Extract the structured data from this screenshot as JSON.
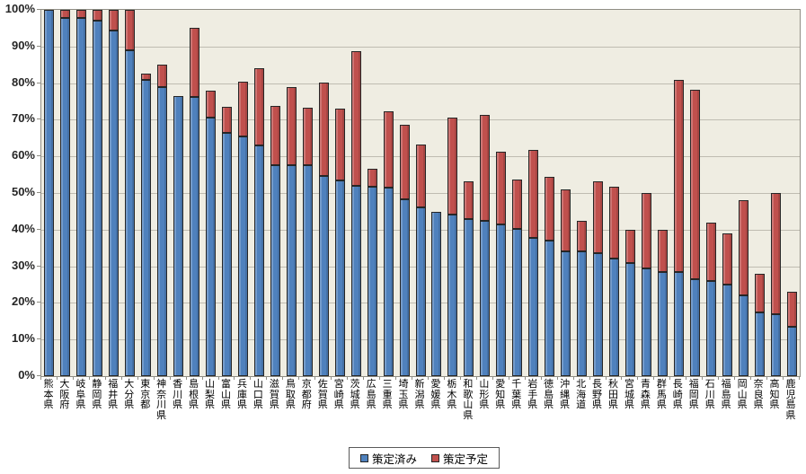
{
  "chart_data": {
    "type": "bar",
    "subtype": "stacked-vertical",
    "title": "",
    "xlabel": "",
    "ylabel": "",
    "categories": [
      "熊本県",
      "大阪府",
      "岐阜県",
      "静岡県",
      "福井県",
      "大分県",
      "東京都",
      "神奈川県",
      "香川県",
      "島根県",
      "山梨県",
      "富山県",
      "兵庫県",
      "山口県",
      "滋賀県",
      "鳥取県",
      "京都府",
      "佐賀県",
      "宮崎県",
      "茨城県",
      "広島県",
      "三重県",
      "埼玉県",
      "新潟県",
      "愛媛県",
      "栃木県",
      "和歌山県",
      "山形県",
      "愛知県",
      "千葉県",
      "岩手県",
      "徳島県",
      "沖縄県",
      "北海道",
      "長野県",
      "秋田県",
      "宮城県",
      "青森県",
      "群馬県",
      "長崎県",
      "福岡県",
      "石川県",
      "福島県",
      "岡山県",
      "奈良県",
      "高知県",
      "鹿児島県"
    ],
    "series": [
      {
        "name": "策定済み",
        "color": "#4f81bd",
        "values": [
          100,
          97.7,
          97.7,
          97.0,
          94.3,
          89.0,
          81.0,
          79.0,
          76.5,
          76.2,
          70.5,
          66.5,
          65.5,
          63.0,
          57.5,
          57.5,
          57.5,
          54.7,
          53.5,
          52.0,
          51.6,
          51.4,
          48.2,
          46.0,
          44.8,
          44.0,
          43.0,
          42.5,
          41.5,
          40.3,
          37.7,
          37.0,
          34.0,
          34.0,
          33.5,
          32.0,
          31.0,
          29.5,
          28.5,
          28.5,
          26.4,
          26.0,
          25.0,
          22.0,
          17.5,
          17.0,
          13.5
        ]
      },
      {
        "name": "策定予定",
        "color": "#c0504d",
        "values": [
          0,
          2.3,
          2.3,
          3.0,
          5.7,
          11.0,
          1.5,
          6.0,
          0,
          19.0,
          7.5,
          7.0,
          15.0,
          21.0,
          16.3,
          21.5,
          15.7,
          25.4,
          19.5,
          36.7,
          5.0,
          20.9,
          20.4,
          17.3,
          0,
          26.5,
          10.3,
          28.8,
          19.8,
          13.4,
          24.0,
          17.3,
          17.0,
          8.3,
          19.7,
          19.8,
          9.0,
          20.5,
          11.5,
          52.5,
          51.9,
          16.0,
          14.0,
          26.0,
          10.5,
          33.0,
          9.5
        ]
      }
    ],
    "y_axis": {
      "min": 0,
      "max": 100,
      "step": 10,
      "unit": "%",
      "tick_labels": [
        "0%",
        "10%",
        "20%",
        "30%",
        "40%",
        "50%",
        "60%",
        "70%",
        "80%",
        "90%",
        "100%"
      ]
    },
    "legend_position": "bottom-center",
    "grid": true,
    "plot_background": "#efede2",
    "gridline_color": "#bfbcb1",
    "bar_border_color": "#262626"
  }
}
